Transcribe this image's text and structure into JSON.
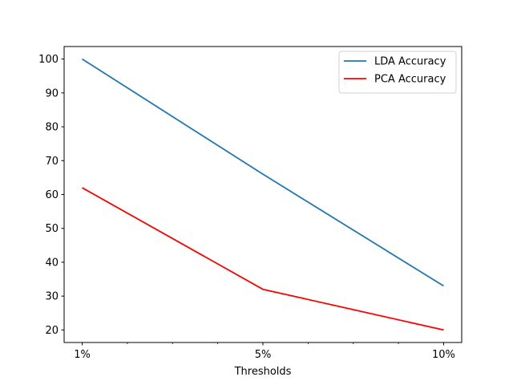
{
  "chart_data": {
    "type": "line",
    "title": "",
    "xlabel": "Thresholds",
    "ylabel": "",
    "categories": [
      "1%",
      "5%",
      "10%"
    ],
    "x": [
      0,
      4,
      8
    ],
    "xlim": [
      -0.4,
      8.4
    ],
    "ylim": [
      16.3,
      103.7
    ],
    "yticks": [
      20,
      30,
      40,
      50,
      60,
      70,
      80,
      90,
      100
    ],
    "minor_xticks": [
      1,
      2,
      3,
      5,
      6,
      7
    ],
    "grid": false,
    "legend_position": "top-right",
    "series": [
      {
        "name": "LDA Accuracy",
        "color": "#1f77b4",
        "values": [
          100,
          66,
          33
        ]
      },
      {
        "name": "PCA Accuracy",
        "color": "#ff0000",
        "values": [
          62,
          32,
          20
        ]
      }
    ]
  }
}
